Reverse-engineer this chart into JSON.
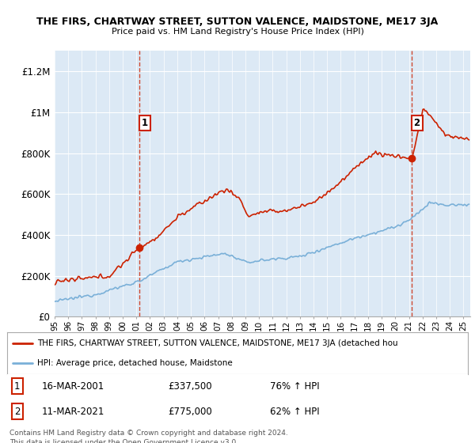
{
  "title": "THE FIRS, CHARTWAY STREET, SUTTON VALENCE, MAIDSTONE, ME17 3JA",
  "subtitle": "Price paid vs. HM Land Registry's House Price Index (HPI)",
  "ylim": [
    0,
    1300000
  ],
  "yticks": [
    0,
    200000,
    400000,
    600000,
    800000,
    1000000,
    1200000
  ],
  "ytick_labels": [
    "£0",
    "£200K",
    "£400K",
    "£600K",
    "£800K",
    "£1M",
    "£1.2M"
  ],
  "background_color": "#ffffff",
  "plot_bg_color": "#dce9f5",
  "red_color": "#cc2200",
  "blue_color": "#7ab0d8",
  "legend_label_red": "THE FIRS, CHARTWAY STREET, SUTTON VALENCE, MAIDSTONE, ME17 3JA (detached hou",
  "legend_label_blue": "HPI: Average price, detached house, Maidstone",
  "table_row1": [
    "1",
    "16-MAR-2001",
    "£337,500",
    "76% ↑ HPI"
  ],
  "table_row2": [
    "2",
    "11-MAR-2021",
    "£775,000",
    "62% ↑ HPI"
  ],
  "footer": "Contains HM Land Registry data © Crown copyright and database right 2024.\nThis data is licensed under the Open Government Licence v3.0.",
  "xlim_start": 1995.0,
  "xlim_end": 2025.5,
  "marker1_x": 2001.21,
  "marker1_y": 337500,
  "marker2_x": 2021.2,
  "marker2_y": 775000
}
